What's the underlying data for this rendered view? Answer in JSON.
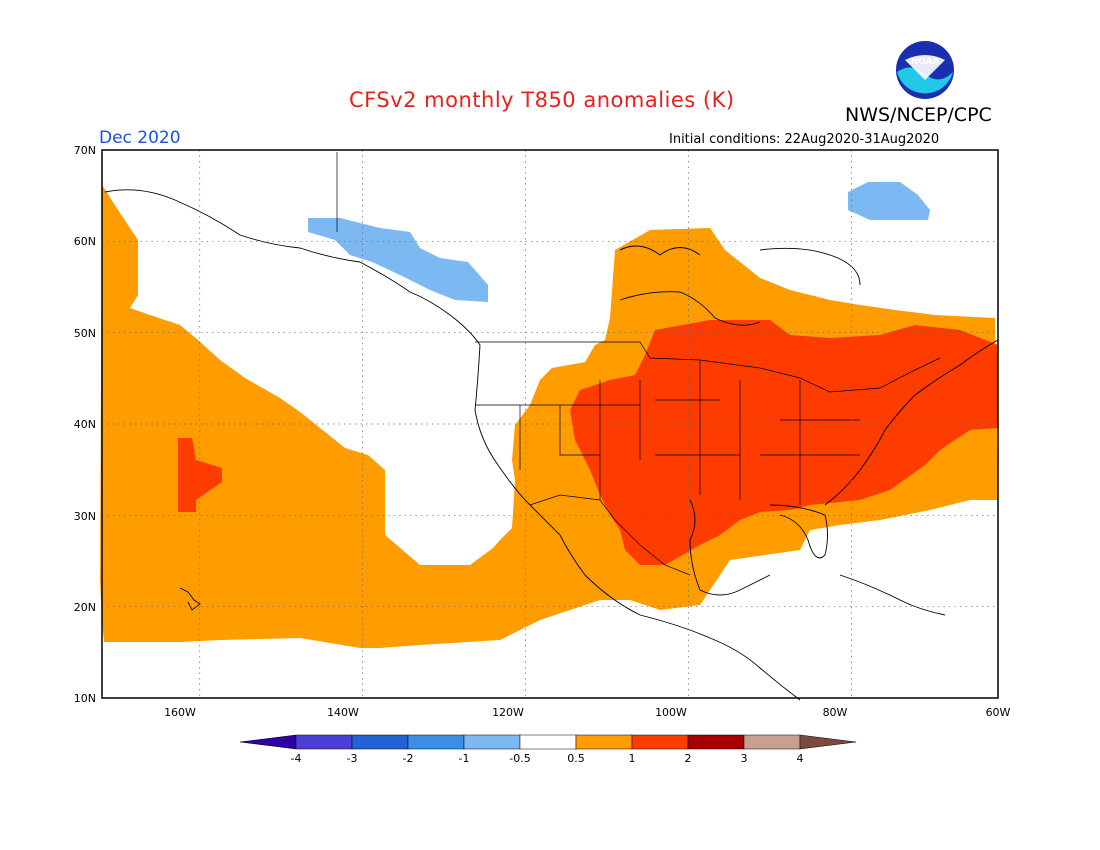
{
  "header": {
    "title": "CFSv2 monthly T850 anomalies (K)",
    "agency": "NWS/NCEP/CPC",
    "month": "Dec 2020",
    "initial_conditions": "Initial conditions: 22Aug2020-31Aug2020",
    "logo_text": "NOAA"
  },
  "map": {
    "extent": {
      "lon_min": -172,
      "lon_max": -62,
      "lat_min": 10,
      "lat_max": 70
    },
    "lat_ticks": [
      "10N",
      "20N",
      "30N",
      "40N",
      "50N",
      "60N",
      "70N"
    ],
    "lon_ticks": [
      "160W",
      "140W",
      "120W",
      "100W",
      "80W",
      "60W"
    ],
    "grid": true
  },
  "colorbar": {
    "labels": [
      "-4",
      "-3",
      "-2",
      "-1",
      "-0.5",
      "0.5",
      "1",
      "2",
      "3",
      "4"
    ],
    "colors": [
      "#2e00a8",
      "#4a3fd6",
      "#1f63d4",
      "#3b8fe6",
      "#7cb8f2",
      "#ffffff",
      "#ff9c00",
      "#ff3c00",
      "#a80000",
      "#c8a090",
      "#7a4b3c"
    ]
  },
  "legend_colors": {
    "orange": "#ff9c00",
    "red": "#ff3c00",
    "lightblue": "#7cb8f2"
  }
}
